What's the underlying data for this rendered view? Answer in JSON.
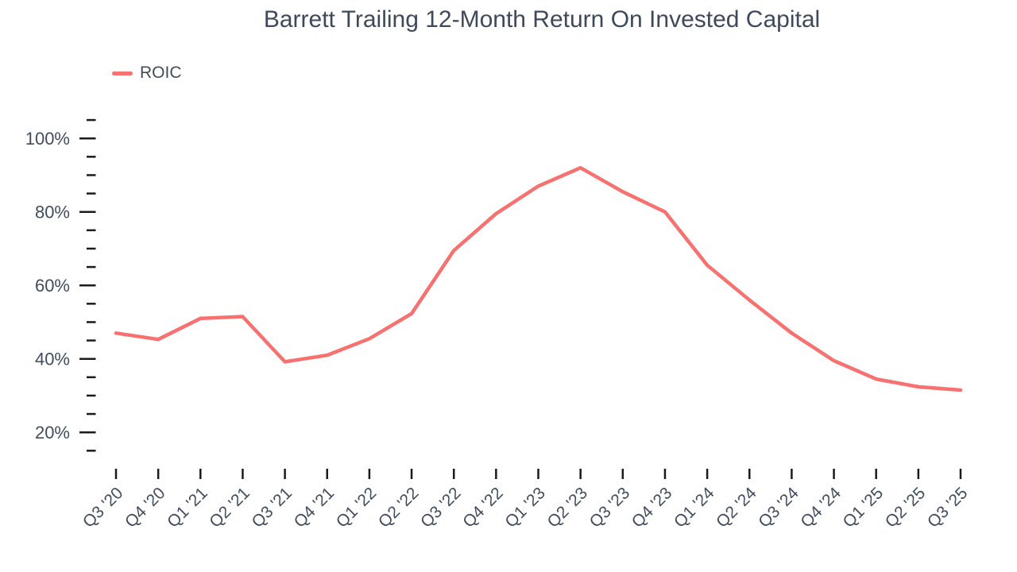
{
  "chart_data": {
    "type": "line",
    "title": "Barrett Trailing 12-Month Return On Invested Capital",
    "categories": [
      "Q3 '20",
      "Q4 '20",
      "Q1 '21",
      "Q2 '21",
      "Q3 '21",
      "Q4 '21",
      "Q1 '22",
      "Q2 '22",
      "Q3 '22",
      "Q4 '22",
      "Q1 '23",
      "Q2 '23",
      "Q3 '23",
      "Q4 '23",
      "Q1 '24",
      "Q2 '24",
      "Q3 '24",
      "Q4 '24",
      "Q1 '25",
      "Q2 '25",
      "Q3 '25"
    ],
    "series": [
      {
        "name": "ROIC",
        "color": "#f87171",
        "values": [
          47,
          45.3,
          51,
          51.5,
          39.2,
          41,
          45.5,
          52.3,
          69.5,
          79.5,
          87,
          92,
          85.5,
          80,
          65.5,
          56,
          47,
          39.5,
          34.5,
          32.4,
          31.5
        ]
      }
    ],
    "xlabel": "",
    "ylabel": "",
    "ylim": [
      13,
      107
    ],
    "y_axis": {
      "major_ticks": [
        {
          "value": 20,
          "label": "20%"
        },
        {
          "value": 40,
          "label": "40%"
        },
        {
          "value": 60,
          "label": "60%"
        },
        {
          "value": 80,
          "label": "80%"
        },
        {
          "value": 100,
          "label": "100%"
        }
      ],
      "minor_ticks": [
        15,
        25,
        30,
        35,
        45,
        50,
        55,
        65,
        70,
        75,
        85,
        90,
        95,
        105
      ]
    },
    "grid": false,
    "legend_position": "top-left"
  },
  "colors": {
    "line": "#f87171",
    "title_text": "#3e4a5c",
    "axis_text": "#414d5f",
    "tick": "#191b1e",
    "background": "#ffffff"
  }
}
